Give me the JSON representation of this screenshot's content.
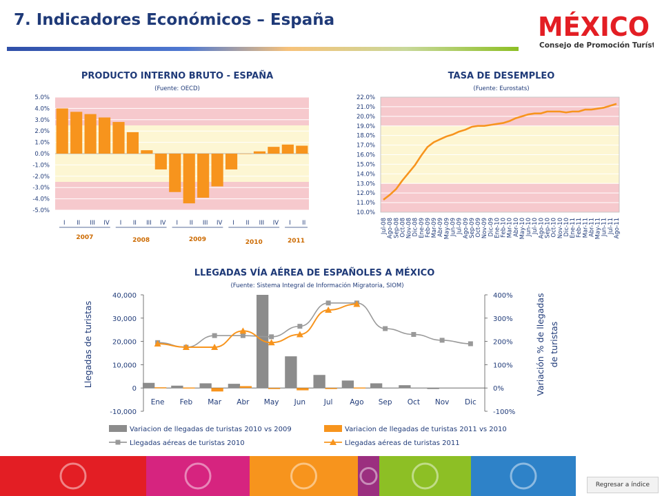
{
  "page": {
    "title": "7. Indicadores Económicos – España",
    "logo_word": "MÉXICO",
    "logo_sub": "Consejo de Promoción Turística",
    "back_label": "Regresar a índice",
    "colors": {
      "title": "#1f3a78",
      "orange": "#f7941d",
      "gray": "#8c8c8c",
      "axis_text": "#1f3a78"
    },
    "footer_colors": [
      "#e31e24",
      "#d6247f",
      "#f7941d",
      "#9b2f7f",
      "#8dbf25",
      "#2e82c8"
    ]
  },
  "chart_data": [
    {
      "id": "pib",
      "type": "bar",
      "title": "PRODUCTO INTERNO BRUTO - ESPAÑA",
      "subtitle": "(Fuente: OECD)",
      "categories": [
        "I",
        "II",
        "III",
        "IV",
        "I",
        "II",
        "III",
        "IV",
        "I",
        "II",
        "III",
        "IV",
        "I",
        "II",
        "III",
        "IV",
        "I",
        "II"
      ],
      "year_groups": [
        {
          "label": "2007",
          "span": 4
        },
        {
          "label": "2008",
          "span": 4
        },
        {
          "label": "2009",
          "span": 4
        },
        {
          "label": "2010",
          "span": 4
        },
        {
          "label": "2011",
          "span": 2
        }
      ],
      "values": [
        4.0,
        3.7,
        3.5,
        3.2,
        2.8,
        1.9,
        0.3,
        -1.4,
        -3.4,
        -4.4,
        -3.9,
        -2.9,
        -1.4,
        0.0,
        0.2,
        0.6,
        0.8,
        0.7
      ],
      "ylim": [
        -5.0,
        5.0
      ],
      "yticks": [
        "5.0%",
        "4.0%",
        "3.0%",
        "2.0%",
        "1.0%",
        "0.0%",
        "-1.0%",
        "-2.0%",
        "-3.0%",
        "-4.0%",
        "-5.0%"
      ],
      "color": "#f7941d"
    },
    {
      "id": "desempleo",
      "type": "line",
      "title": "TASA DE DESEMPLEO",
      "subtitle": "(Fuente: Eurostats)",
      "x": [
        "Jul-08",
        "Ago-08",
        "Sep-08",
        "Oct-08",
        "Nov-08",
        "Dic-08",
        "Ene-09",
        "Feb-09",
        "Mar-09",
        "Abr-09",
        "May-09",
        "Jun-09",
        "Jul-09",
        "Ago-09",
        "Sep-09",
        "Oct-09",
        "Nov-09",
        "Dic-09",
        "Ene-10",
        "Feb-10",
        "Mar-10",
        "Abr-10",
        "May-10",
        "Jun-10",
        "Jul-10",
        "Ago-10",
        "Sep-10",
        "Oct-10",
        "Nov-10",
        "Dic-10",
        "Ene-11",
        "Feb-11",
        "Mar-11",
        "Abr-11",
        "May-11",
        "Jun-11",
        "Jul-11",
        "Ago-11"
      ],
      "values": [
        11.3,
        11.8,
        12.4,
        13.3,
        14.1,
        14.9,
        15.9,
        16.8,
        17.3,
        17.6,
        17.9,
        18.1,
        18.4,
        18.6,
        18.9,
        19.0,
        19.0,
        19.1,
        19.2,
        19.3,
        19.5,
        19.8,
        20.0,
        20.2,
        20.3,
        20.3,
        20.5,
        20.5,
        20.5,
        20.4,
        20.5,
        20.5,
        20.7,
        20.7,
        20.8,
        20.9,
        21.1,
        21.3
      ],
      "ylim": [
        10.0,
        22.0
      ],
      "yticks": [
        "22.0%",
        "21.0%",
        "20.0%",
        "19.0%",
        "18.0%",
        "17.0%",
        "16.0%",
        "15.0%",
        "14.0%",
        "13.0%",
        "12.0%",
        "11.0%",
        "10.0%"
      ],
      "color": "#f7941d"
    },
    {
      "id": "llegadas",
      "type": "bar",
      "title": "LLEGADAS VÍA AÉREA DE ESPAÑOLES A MÉXICO",
      "subtitle": "(Fuente: Sistema Integral de Información Migratoria, SIOM)",
      "categories": [
        "Ene",
        "Feb",
        "Mar",
        "Abr",
        "May",
        "Jun",
        "Jul",
        "Ago",
        "Sep",
        "Oct",
        "Nov",
        "Dic"
      ],
      "ylabel_left": "Llegadas de turistas",
      "ylabel_right_1": "Variación % de llegadas",
      "ylabel_right_2": "de turistas",
      "left_ylim": [
        -10000,
        40000
      ],
      "left_yticks": [
        "40,000",
        "30,000",
        "20,000",
        "10,000",
        "0",
        "-10,000"
      ],
      "right_ylim": [
        -100,
        400
      ],
      "right_yticks": [
        "400%",
        "300%",
        "200%",
        "100%",
        "0%",
        "-100%"
      ],
      "series": [
        {
          "name": "Variacion de llegadas de turistas  2010 vs 2009",
          "axis": "right",
          "kind": "bar",
          "color": "#8c8c8c",
          "values": [
            22,
            10,
            20,
            18,
            400,
            136,
            56,
            32,
            20,
            12,
            -1,
            null
          ]
        },
        {
          "name": "Variacion de llegadas de turistas  2011 vs 2010",
          "axis": "right",
          "kind": "bar",
          "color": "#f7941d",
          "values": [
            3,
            2,
            -15,
            8,
            -4,
            -10,
            -3,
            2,
            null,
            null,
            null,
            null
          ]
        },
        {
          "name": "Llegadas aéreas de turistas 2010",
          "axis": "left",
          "kind": "line",
          "color": "#999999",
          "values": [
            19500,
            17500,
            22500,
            22500,
            22000,
            26500,
            36500,
            36500,
            25500,
            23000,
            20500,
            19000
          ]
        },
        {
          "name": "Llegadas aéreas de turistas 2011",
          "axis": "left",
          "kind": "line",
          "color": "#f7941d",
          "values": [
            19000,
            17500,
            17500,
            24500,
            19500,
            23000,
            33500,
            36000,
            null,
            null,
            null,
            null
          ]
        }
      ]
    }
  ]
}
